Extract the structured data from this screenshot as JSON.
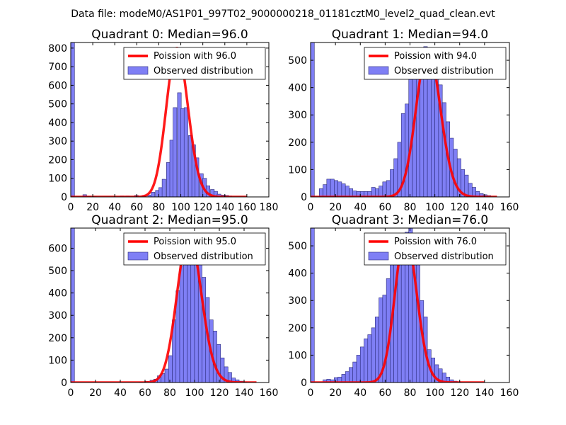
{
  "suptitle": "Data file: modeM0/AS1P01_997T02_9000000218_01181cztM0_level2_quad_clean.evt",
  "colors": {
    "bar_fill": "#7f7ff5",
    "bar_edge": "#2a2a7a",
    "line": "#ff0000",
    "axes": "#000000"
  },
  "chart_data": [
    {
      "type": "bar",
      "title": "Quadrant 0: Median=96.0",
      "legend": [
        "Poission with 96.0",
        "Observed distribution"
      ],
      "xlim": [
        0,
        180
      ],
      "ylim": [
        0,
        830
      ],
      "xticks": [
        0,
        20,
        40,
        60,
        80,
        100,
        120,
        140,
        160,
        180
      ],
      "yticks": [
        0,
        100,
        200,
        300,
        400,
        500,
        600,
        700,
        800
      ],
      "bin_width": 3.4,
      "bins": [
        [
          0,
          830
        ],
        [
          11,
          12
        ],
        [
          15,
          3
        ],
        [
          20,
          2
        ],
        [
          45,
          5
        ],
        [
          50,
          5
        ],
        [
          58,
          8
        ],
        [
          65,
          8
        ],
        [
          70,
          10
        ],
        [
          73,
          25
        ],
        [
          77,
          35
        ],
        [
          80,
          50
        ],
        [
          83,
          95
        ],
        [
          87,
          185
        ],
        [
          90,
          305
        ],
        [
          93,
          480
        ],
        [
          97,
          560
        ],
        [
          100,
          475
        ],
        [
          103,
          480
        ],
        [
          107,
          330
        ],
        [
          110,
          280
        ],
        [
          113,
          210
        ],
        [
          117,
          125
        ],
        [
          120,
          100
        ],
        [
          123,
          60
        ],
        [
          127,
          40
        ],
        [
          130,
          30
        ],
        [
          133,
          15
        ],
        [
          137,
          10
        ],
        [
          140,
          8
        ],
        [
          143,
          5
        ]
      ],
      "poisson": {
        "mean": 96.0,
        "peak": 800,
        "x_range": [
          0,
          160
        ]
      }
    },
    {
      "type": "bar",
      "title": "Quadrant 1: Median=94.0",
      "legend": [
        "Poission with 94.0",
        "Observed distribution"
      ],
      "xlim": [
        0,
        160
      ],
      "ylim": [
        0,
        565
      ],
      "xticks": [
        0,
        20,
        40,
        60,
        80,
        100,
        120,
        140,
        160
      ],
      "yticks": [
        0,
        100,
        200,
        300,
        400,
        500
      ],
      "bin_width": 3.0,
      "bins": [
        [
          0,
          565
        ],
        [
          7,
          30
        ],
        [
          10,
          45
        ],
        [
          13,
          65
        ],
        [
          16,
          65
        ],
        [
          19,
          60
        ],
        [
          22,
          55
        ],
        [
          25,
          48
        ],
        [
          28,
          40
        ],
        [
          31,
          30
        ],
        [
          34,
          22
        ],
        [
          37,
          20
        ],
        [
          40,
          20
        ],
        [
          43,
          20
        ],
        [
          46,
          20
        ],
        [
          49,
          35
        ],
        [
          52,
          30
        ],
        [
          55,
          40
        ],
        [
          58,
          55
        ],
        [
          61,
          60
        ],
        [
          64,
          100
        ],
        [
          67,
          140
        ],
        [
          70,
          200
        ],
        [
          73,
          305
        ],
        [
          76,
          340
        ],
        [
          79,
          430
        ],
        [
          82,
          480
        ],
        [
          85,
          520
        ],
        [
          88,
          540
        ],
        [
          91,
          550
        ],
        [
          94,
          525
        ],
        [
          97,
          505
        ],
        [
          100,
          525
        ],
        [
          103,
          410
        ],
        [
          106,
          345
        ],
        [
          109,
          275
        ],
        [
          112,
          215
        ],
        [
          115,
          175
        ],
        [
          118,
          140
        ],
        [
          121,
          100
        ],
        [
          124,
          80
        ],
        [
          127,
          50
        ],
        [
          130,
          35
        ],
        [
          133,
          20
        ],
        [
          136,
          12
        ],
        [
          139,
          8
        ],
        [
          142,
          5
        ]
      ],
      "poisson": {
        "mean": 94.0,
        "peak": 540,
        "x_range": [
          0,
          150
        ]
      }
    },
    {
      "type": "bar",
      "title": "Quadrant 2: Median=95.0",
      "legend": [
        "Poission with 95.0",
        "Observed distribution"
      ],
      "xlim": [
        0,
        160
      ],
      "ylim": [
        0,
        690
      ],
      "xticks": [
        0,
        20,
        40,
        60,
        80,
        100,
        120,
        140,
        160
      ],
      "yticks": [
        0,
        100,
        200,
        300,
        400,
        500,
        600
      ],
      "bin_width": 3.0,
      "bins": [
        [
          0,
          690
        ],
        [
          55,
          2
        ],
        [
          60,
          5
        ],
        [
          64,
          10
        ],
        [
          67,
          15
        ],
        [
          70,
          30
        ],
        [
          73,
          40
        ],
        [
          76,
          60
        ],
        [
          79,
          120
        ],
        [
          82,
          280
        ],
        [
          85,
          410
        ],
        [
          88,
          520
        ],
        [
          91,
          560
        ],
        [
          94,
          600
        ],
        [
          97,
          660
        ],
        [
          100,
          600
        ],
        [
          103,
          540
        ],
        [
          106,
          470
        ],
        [
          109,
          380
        ],
        [
          112,
          280
        ],
        [
          115,
          230
        ],
        [
          118,
          170
        ],
        [
          121,
          110
        ],
        [
          124,
          70
        ],
        [
          127,
          45
        ],
        [
          130,
          20
        ],
        [
          133,
          12
        ],
        [
          136,
          6
        ],
        [
          139,
          3
        ]
      ],
      "poisson": {
        "mean": 95.0,
        "peak": 660,
        "x_range": [
          0,
          150
        ]
      }
    },
    {
      "type": "bar",
      "title": "Quadrant 3: Median=76.0",
      "legend": [
        "Poission with 76.0",
        "Observed distribution"
      ],
      "xlim": [
        0,
        160
      ],
      "ylim": [
        0,
        565
      ],
      "xticks": [
        0,
        20,
        40,
        60,
        80,
        100,
        120,
        140,
        160
      ],
      "yticks": [
        0,
        100,
        200,
        300,
        400,
        500
      ],
      "bin_width": 3.0,
      "bins": [
        [
          0,
          565
        ],
        [
          10,
          10
        ],
        [
          13,
          12
        ],
        [
          16,
          10
        ],
        [
          19,
          18
        ],
        [
          22,
          20
        ],
        [
          25,
          30
        ],
        [
          28,
          40
        ],
        [
          31,
          55
        ],
        [
          34,
          75
        ],
        [
          37,
          100
        ],
        [
          40,
          130
        ],
        [
          43,
          160
        ],
        [
          46,
          175
        ],
        [
          49,
          200
        ],
        [
          52,
          240
        ],
        [
          55,
          310
        ],
        [
          58,
          320
        ],
        [
          61,
          380
        ],
        [
          64,
          450
        ],
        [
          67,
          480
        ],
        [
          70,
          500
        ],
        [
          73,
          520
        ],
        [
          76,
          550
        ],
        [
          79,
          580
        ],
        [
          82,
          490
        ],
        [
          85,
          470
        ],
        [
          88,
          300
        ],
        [
          91,
          240
        ],
        [
          94,
          120
        ],
        [
          97,
          90
        ],
        [
          100,
          65
        ],
        [
          103,
          50
        ],
        [
          106,
          35
        ],
        [
          109,
          20
        ],
        [
          112,
          10
        ],
        [
          115,
          5
        ],
        [
          118,
          3
        ]
      ],
      "poisson": {
        "mean": 76.0,
        "peak": 540,
        "x_range": [
          0,
          140
        ]
      }
    }
  ]
}
